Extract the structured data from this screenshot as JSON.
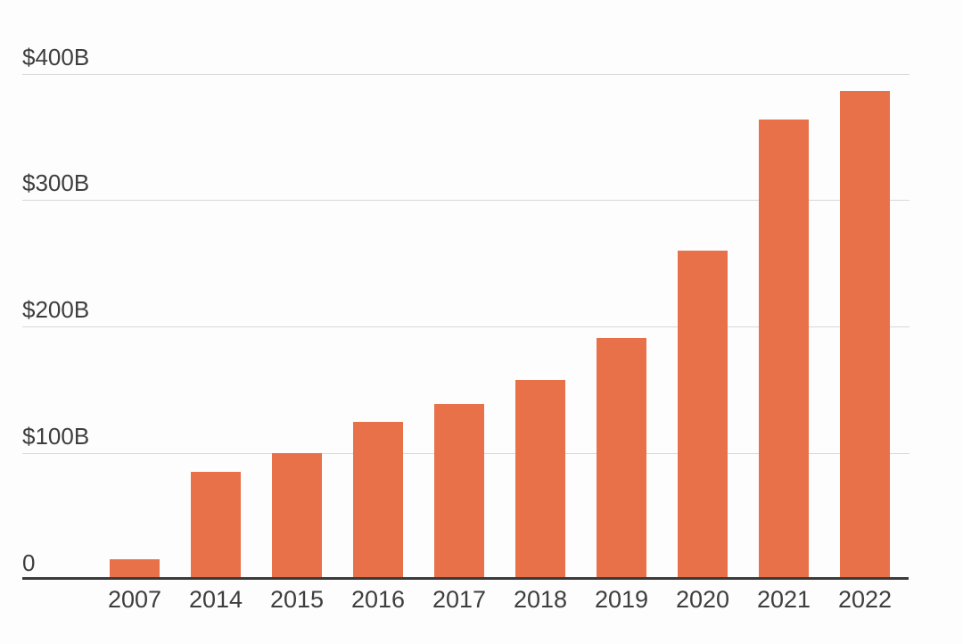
{
  "chart_data": {
    "type": "bar",
    "title": "",
    "xlabel": "",
    "ylabel": "",
    "categories": [
      "2007",
      "2014",
      "2015",
      "2016",
      "2017",
      "2018",
      "2019",
      "2020",
      "2021",
      "2022"
    ],
    "values": [
      16,
      85,
      100,
      125,
      139,
      158,
      191,
      260,
      364,
      386
    ],
    "series_unit": "USD billions",
    "ylim": [
      0,
      400
    ],
    "y_ticks": [
      {
        "value": 0,
        "label": "0"
      },
      {
        "value": 100,
        "label": "$100B"
      },
      {
        "value": 200,
        "label": "$200B"
      },
      {
        "value": 300,
        "label": "$300B"
      },
      {
        "value": 400,
        "label": "$400B"
      }
    ],
    "grid": "horizontal",
    "legend": "none",
    "bar_color": "#E8714A"
  },
  "style": {
    "background": "#FDFDFD",
    "grid_color": "#D9D9D9",
    "axis_line_color": "#3A3A3A",
    "tick_label_color": "#3E3E3E"
  }
}
